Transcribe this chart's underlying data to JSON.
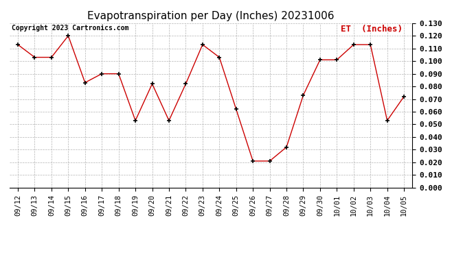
{
  "title": "Evapotranspiration per Day (Inches) 20231006",
  "copyright_text": "Copyright 2023 Cartronics.com",
  "legend_label": "ET  (Inches)",
  "dates": [
    "09/12",
    "09/13",
    "09/14",
    "09/15",
    "09/16",
    "09/17",
    "09/18",
    "09/19",
    "09/20",
    "09/21",
    "09/22",
    "09/23",
    "09/24",
    "09/25",
    "09/26",
    "09/27",
    "09/28",
    "09/29",
    "09/30",
    "10/01",
    "10/02",
    "10/03",
    "10/04",
    "10/05"
  ],
  "values": [
    0.113,
    0.103,
    0.103,
    0.12,
    0.083,
    0.09,
    0.09,
    0.053,
    0.082,
    0.053,
    0.082,
    0.113,
    0.103,
    0.062,
    0.021,
    0.021,
    0.032,
    0.073,
    0.101,
    0.101,
    0.113,
    0.113,
    0.053,
    0.072
  ],
  "line_color": "#cc0000",
  "marker": "+",
  "marker_color": "#000000",
  "ylim": [
    0.0,
    0.13
  ],
  "ytick_interval": 0.01,
  "background_color": "#ffffff",
  "grid_color": "#aaaaaa",
  "title_fontsize": 11,
  "axis_fontsize": 7.5,
  "copyright_fontsize": 7,
  "legend_fontsize": 9,
  "ytick_fontsize": 8
}
